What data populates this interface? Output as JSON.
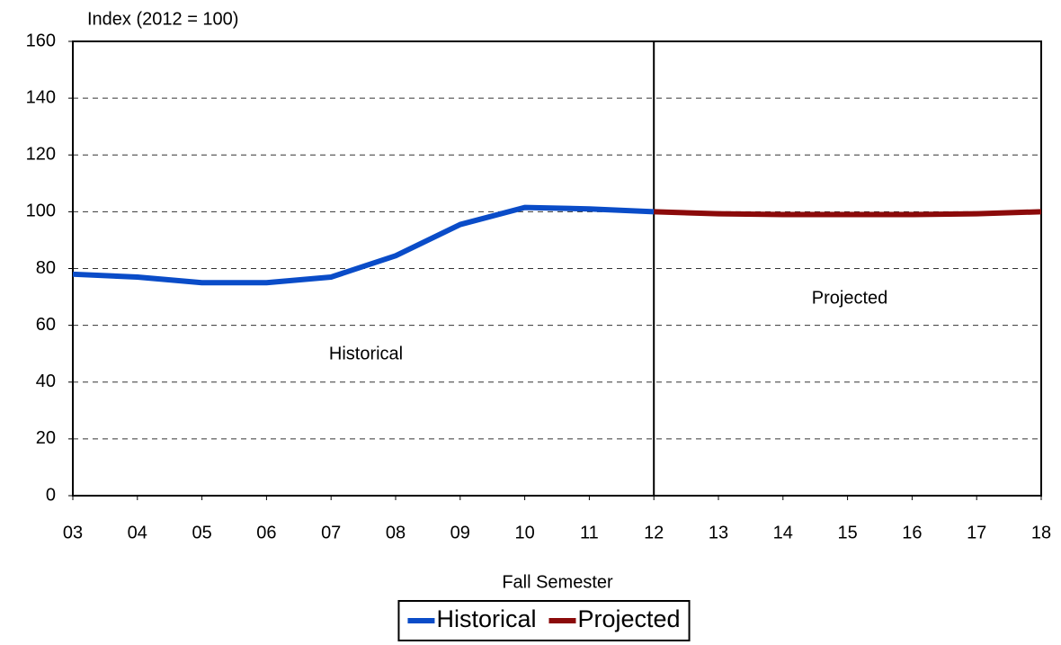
{
  "chart_data": {
    "type": "line",
    "y_label": "Index (2012 = 100)",
    "x_label": "Fall Semester",
    "categories": [
      "03",
      "04",
      "05",
      "06",
      "07",
      "08",
      "09",
      "10",
      "11",
      "12",
      "13",
      "14",
      "15",
      "16",
      "17",
      "18"
    ],
    "series": [
      {
        "name": "Historical",
        "color": "#0a4cc8",
        "values": [
          78,
          77,
          75,
          75,
          77,
          84.5,
          95.5,
          101.5,
          101,
          100,
          null,
          null,
          null,
          null,
          null,
          null
        ]
      },
      {
        "name": "Projected",
        "color": "#8b0a0a",
        "values": [
          null,
          null,
          null,
          null,
          null,
          null,
          null,
          null,
          null,
          100,
          99.3,
          99,
          99,
          99,
          99.3,
          100
        ]
      }
    ],
    "annotations": [
      "Historical",
      "Projected"
    ],
    "ylim": [
      0,
      160
    ],
    "yticks": [
      0,
      20,
      40,
      60,
      80,
      100,
      120,
      140,
      160
    ],
    "grid": true,
    "legend": "bottom"
  }
}
